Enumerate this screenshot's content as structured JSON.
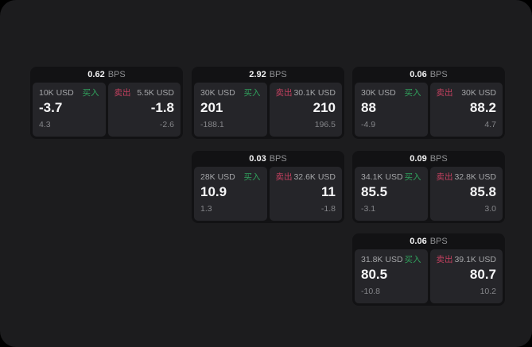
{
  "labels": {
    "bps": "BPS",
    "buy": "买入",
    "sell": "卖出"
  },
  "colors": {
    "buy_green": "#30a15c",
    "sell_red": "#c2405f",
    "page_bg": "#1c1c1e",
    "card_bg": "#121214",
    "panel_bg": "#252529"
  },
  "cards": [
    {
      "bps_value": "0.62",
      "buy": {
        "notional": "10K USD",
        "rate": "-3.7",
        "change": "4.3"
      },
      "sell": {
        "notional": "5.5K USD",
        "rate": "-1.8",
        "change": "-2.6"
      }
    },
    {
      "bps_value": "2.92",
      "buy": {
        "notional": "30K USD",
        "rate": "201",
        "change": "-188.1"
      },
      "sell": {
        "notional": "30.1K USD",
        "rate": "210",
        "change": "196.5"
      }
    },
    {
      "bps_value": "0.06",
      "buy": {
        "notional": "30K USD",
        "rate": "88",
        "change": "-4.9"
      },
      "sell": {
        "notional": "30K USD",
        "rate": "88.2",
        "change": "4.7"
      }
    },
    {
      "bps_value": "0.03",
      "buy": {
        "notional": "28K USD",
        "rate": "10.9",
        "change": "1.3"
      },
      "sell": {
        "notional": "32.6K USD",
        "rate": "11",
        "change": "-1.8"
      }
    },
    {
      "bps_value": "0.09",
      "buy": {
        "notional": "34.1K USD",
        "rate": "85.5",
        "change": "-3.1"
      },
      "sell": {
        "notional": "32.8K USD",
        "rate": "85.8",
        "change": "3.0"
      }
    },
    {
      "bps_value": "0.06",
      "buy": {
        "notional": "31.8K USD",
        "rate": "80.5",
        "change": "-10.8"
      },
      "sell": {
        "notional": "39.1K USD",
        "rate": "80.7",
        "change": "10.2"
      }
    }
  ]
}
